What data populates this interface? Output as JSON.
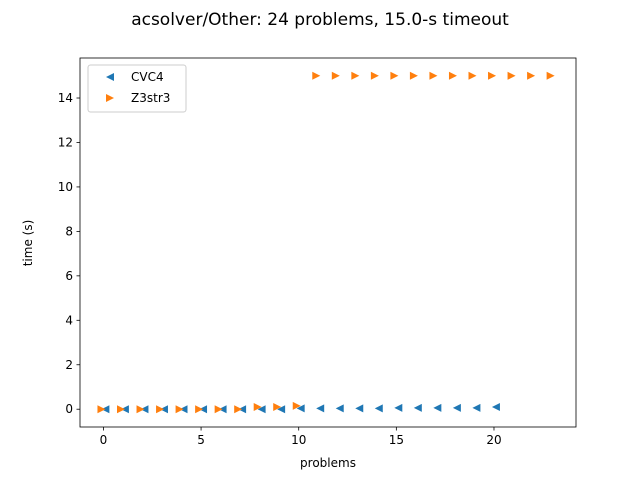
{
  "chart_data": {
    "type": "scatter",
    "title": "acsolver/Other: 24 problems, 15.0-s timeout",
    "xlabel": "problems",
    "ylabel": "time (s)",
    "xlim": [
      -1.2,
      24.2
    ],
    "ylim": [
      -0.8,
      15.8
    ],
    "xticks": [
      0,
      5,
      10,
      15,
      20
    ],
    "yticks": [
      0,
      2,
      4,
      6,
      8,
      10,
      12,
      14
    ],
    "legend_position": "upper-left",
    "series": [
      {
        "name": "CVC4",
        "color": "#1f77b4",
        "marker": "triangle-left",
        "x": [
          0.1,
          1.1,
          2.1,
          3.1,
          4.1,
          5.1,
          6.1,
          7.1,
          8.1,
          9.1,
          10.1,
          11.1,
          12.1,
          13.1,
          14.1,
          15.1,
          16.1,
          17.1,
          18.1,
          19.1,
          20.1
        ],
        "y": [
          0.0,
          0.0,
          0.0,
          0.0,
          0.0,
          0.0,
          0.0,
          0.0,
          0.0,
          0.0,
          0.04,
          0.04,
          0.04,
          0.04,
          0.04,
          0.06,
          0.06,
          0.06,
          0.06,
          0.06,
          0.1
        ]
      },
      {
        "name": "Z3str3",
        "color": "#ff7f0e",
        "marker": "triangle-right",
        "x": [
          -0.1,
          0.9,
          1.9,
          2.9,
          3.9,
          4.9,
          5.9,
          6.9,
          7.9,
          8.9,
          9.9,
          10.9,
          11.9,
          12.9,
          13.9,
          14.9,
          15.9,
          16.9,
          17.9,
          18.9,
          19.9,
          20.9,
          21.9,
          22.9
        ],
        "y": [
          0.0,
          0.0,
          0.0,
          0.0,
          0.0,
          0.0,
          0.0,
          0.0,
          0.1,
          0.1,
          0.15,
          15.0,
          15.0,
          15.0,
          15.0,
          15.0,
          15.0,
          15.0,
          15.0,
          15.0,
          15.0,
          15.0,
          15.0,
          15.0
        ]
      }
    ]
  }
}
